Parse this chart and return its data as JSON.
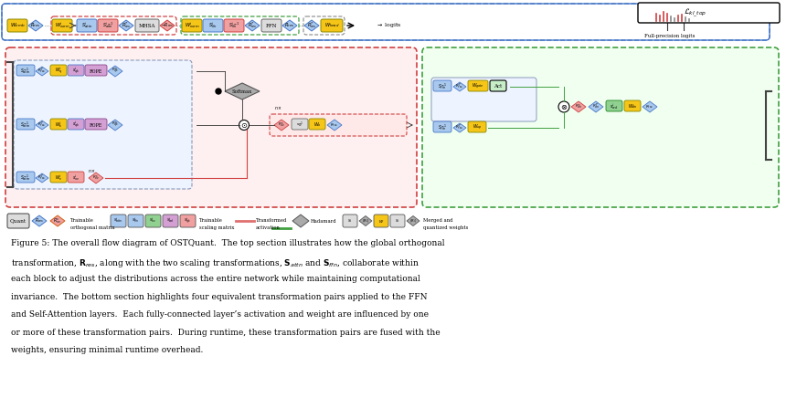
{
  "bg_color": "#ffffff",
  "fig_width": 8.6,
  "fig_height": 4.36,
  "dpi": 100,
  "YELLOW": "#F5C518",
  "BLUE_LIGHT": "#A8C8EE",
  "PINK": "#F0A0A0",
  "PURPLE": "#D4A0D4",
  "GREEN_LIGHT": "#90D090",
  "GRAY_BOX": "#DCDCDC",
  "GRAY_D": "#AAAAAA",
  "WHITE": "#FFFFFF",
  "RED_BORDER": "#D04040",
  "BLUE_BORDER": "#4878C8",
  "GREEN_BORDER": "#40A040",
  "ORANGE_BORDER": "#D06010",
  "caption_lines": [
    "Figure 5: The overall flow diagram of OSTQuant.  The top section illustrates how the global orthogonal",
    "transformation, $\\mathbf{R}_{res}$, along with the two scaling transformations, $\\mathbf{S}_{attn}$ and $\\mathbf{S}_{ffn}$, collaborate within",
    "each block to adjust the distributions across the entire network while maintaining computational",
    "invariance.  The bottom section highlights four equivalent transformation pairs applied to the FFN",
    "and Self-Attention layers.  Each fully-connected layer’s activation and weight are influenced by one",
    "or more of these transformation pairs.  During runtime, these transformation pairs are fused with the",
    "weights, ensuring minimal runtime overhead."
  ]
}
